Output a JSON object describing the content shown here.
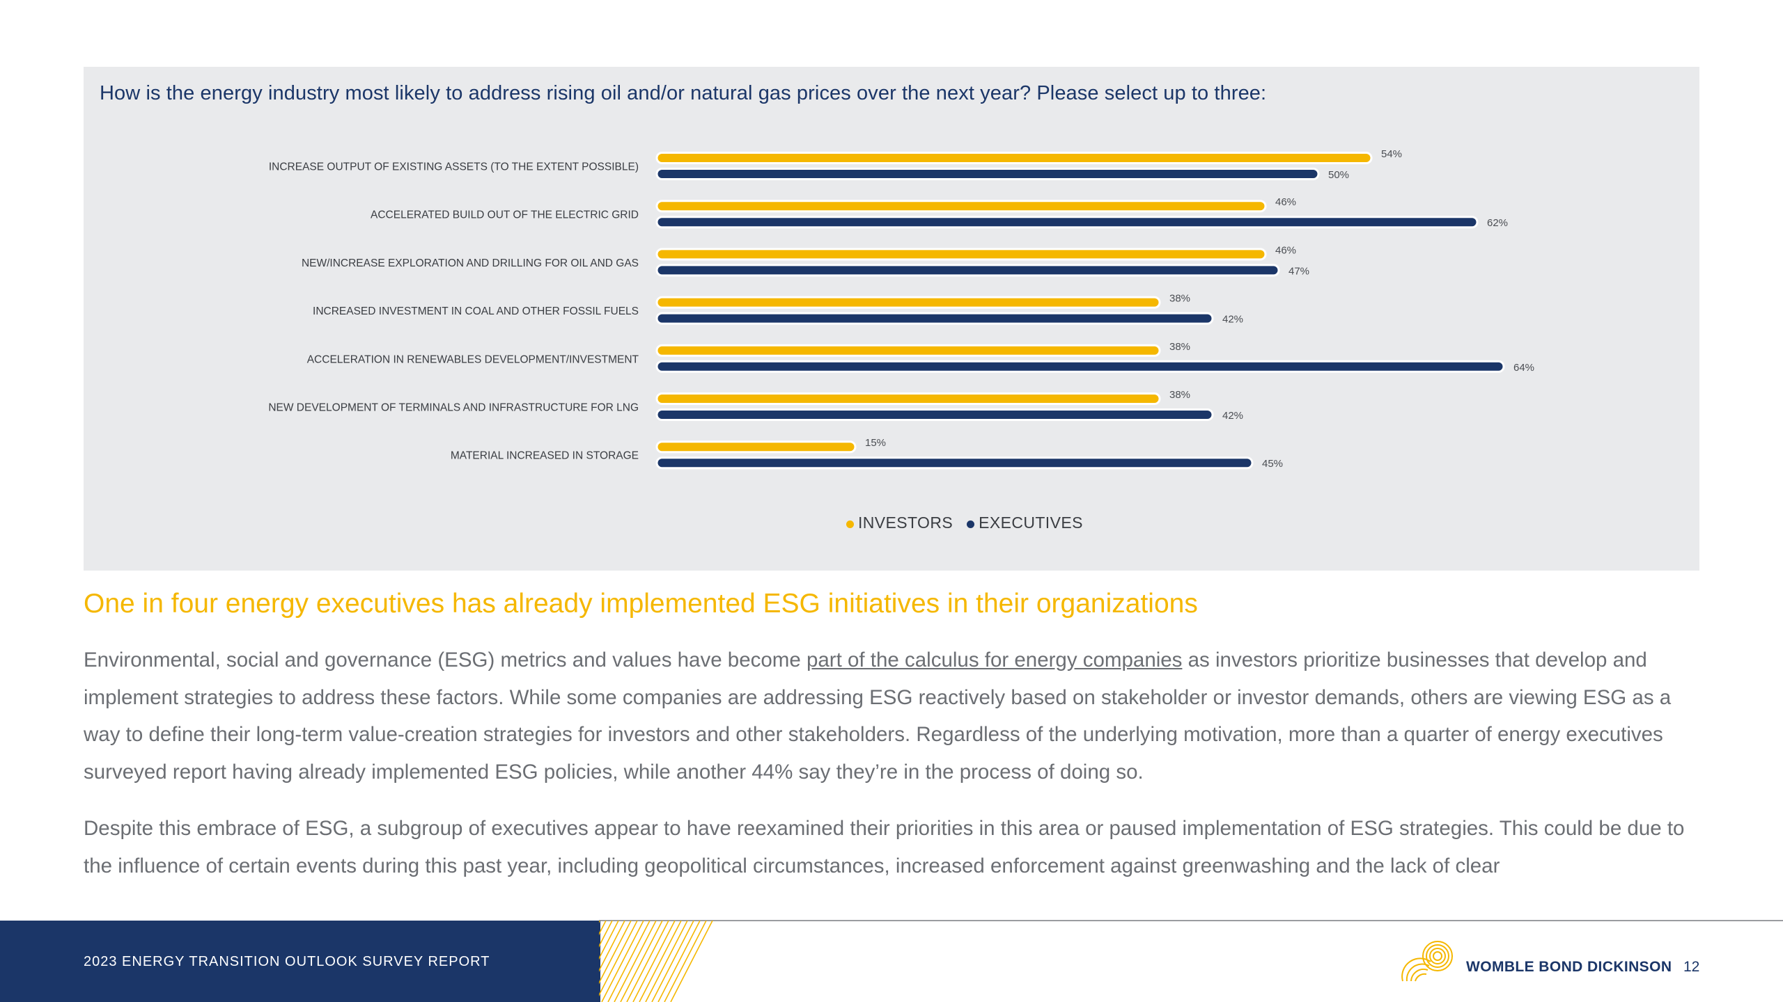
{
  "chart_data": {
    "type": "bar",
    "orientation": "horizontal",
    "title": "How is the energy industry most likely to address rising oil and/or natural gas prices over the next year? Please select up to three:",
    "xlabel": "",
    "ylabel": "",
    "xlim": [
      0,
      100
    ],
    "unit": "%",
    "categories": [
      "INCREASE OUTPUT OF EXISTING ASSETS (TO THE EXTENT POSSIBLE)",
      "ACCELERATED BUILD OUT OF THE ELECTRIC GRID",
      "NEW/INCREASE EXPLORATION AND DRILLING FOR OIL AND GAS",
      "INCREASED INVESTMENT IN COAL AND OTHER FOSSIL FUELS",
      "ACCELERATION IN RENEWABLES DEVELOPMENT/INVESTMENT",
      "NEW DEVELOPMENT OF TERMINALS AND INFRASTRUCTURE FOR LNG",
      "MATERIAL INCREASED IN STORAGE"
    ],
    "series": [
      {
        "name": "INVESTORS",
        "color": "#f5b700",
        "values": [
          54,
          46,
          46,
          38,
          38,
          38,
          15
        ]
      },
      {
        "name": "EXECUTIVES",
        "color": "#1b3668",
        "values": [
          50,
          62,
          47,
          42,
          64,
          42,
          45
        ]
      }
    ],
    "legend_position": "bottom-center",
    "grid": false
  },
  "section": {
    "heading": "One in four energy executives has already implemented ESG initiatives in their organizations"
  },
  "body": {
    "p1_before_link": "Environmental, social and governance (ESG) metrics and values have become ",
    "p1_link": "part of the calculus for energy companies",
    "p1_after_link": " as investors prioritize businesses that develop and implement strategies to address these factors. While some companies are addressing ESG reactively based on stakeholder or investor demands, others are viewing ESG as a way to define their long-term value-creation strategies for investors and other stakeholders. Regardless of the underlying motivation, more than a quarter of energy executives surveyed report having already implemented ESG policies, while another 44% say they’re in the process of doing so.",
    "p2": "Despite this embrace of ESG, a subgroup of executives appear to have reexamined their priorities in this area or paused implementation of ESG strategies. This could be due to the influence of certain events during this past year, including geopolitical circumstances, increased enforcement against greenwashing and the lack of clear"
  },
  "footer": {
    "report_title": "2023 ENERGY TRANSITION OUTLOOK SURVEY REPORT",
    "brand": "WOMBLE BOND DICKINSON",
    "page_number": "12"
  },
  "colors": {
    "navy": "#1b3668",
    "yellow": "#f5b700",
    "panel": "#e9eaec"
  }
}
